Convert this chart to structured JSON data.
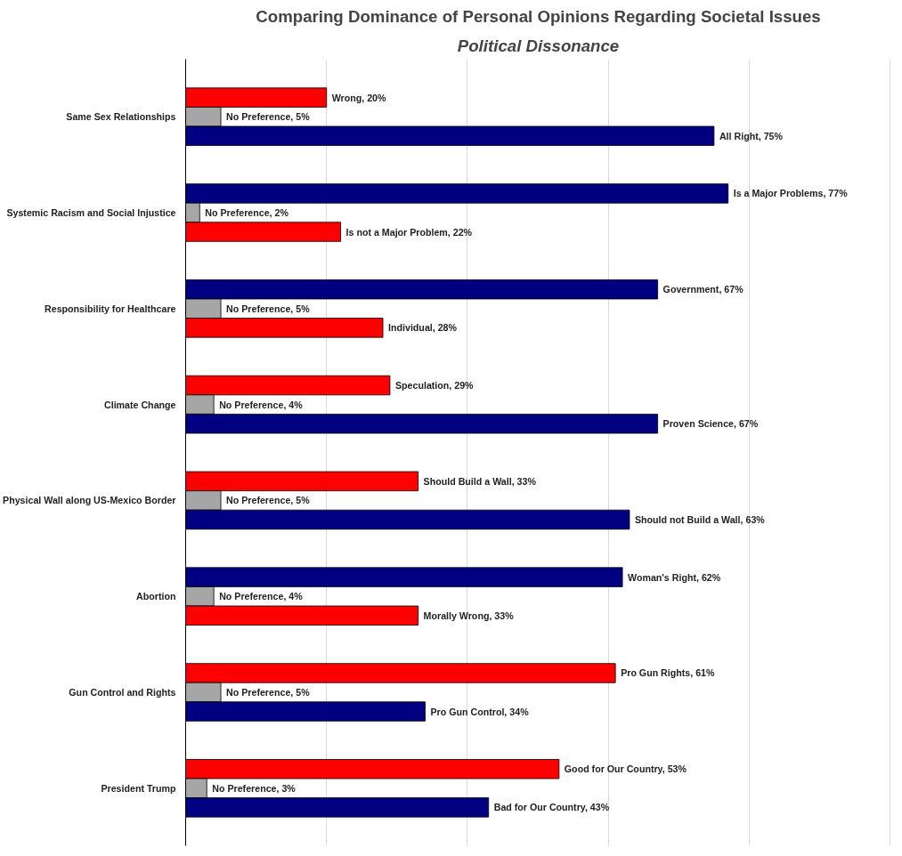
{
  "chart_data": {
    "type": "bar",
    "orientation": "horizontal",
    "title": "Comparing Dominance of Personal Opinions Regarding Societal Issues",
    "subtitle": "Political Dissonance",
    "categories": [
      "Same Sex Relationships",
      "Systemic Racism and Social Injustice",
      "Responsibility for Healthcare",
      "Climate Change",
      "Physical Wall along US-Mexico Border",
      "Abortion",
      "Gun Control and Rights",
      "President Trump"
    ],
    "series": [
      {
        "colors": [
          "#ff0000",
          "#000080",
          "#000080",
          "#ff0000",
          "#ff0000",
          "#000080",
          "#ff0000",
          "#ff0000"
        ],
        "values": [
          20,
          77,
          67,
          29,
          33,
          62,
          61,
          53
        ],
        "value_labels": [
          "Wrong, 20%",
          "Is a Major Problems, 77%",
          "Government, 67%",
          "Speculation, 29%",
          "Should Build a Wall, 33%",
          "Woman's Right, 62%",
          "Pro Gun Rights, 61%",
          "Good for Our Country, 53%"
        ]
      },
      {
        "colors": [
          "#a6a6a6",
          "#a6a6a6",
          "#a6a6a6",
          "#a6a6a6",
          "#a6a6a6",
          "#a6a6a6",
          "#a6a6a6",
          "#a6a6a6"
        ],
        "values": [
          5,
          2,
          5,
          4,
          5,
          4,
          5,
          3
        ],
        "value_labels": [
          "No Preference, 5%",
          "No Preference, 2%",
          "No Preference, 5%",
          "No Preference, 4%",
          "No Preference, 5%",
          "No Preference, 4%",
          "No Preference, 5%",
          "No Preference, 3%"
        ]
      },
      {
        "colors": [
          "#000080",
          "#ff0000",
          "#ff0000",
          "#000080",
          "#000080",
          "#ff0000",
          "#000080",
          "#000080"
        ],
        "values": [
          75,
          22,
          28,
          67,
          63,
          33,
          34,
          43
        ],
        "value_labels": [
          "All Right, 75%",
          "Is not a Major Problem, 22%",
          "Individual, 28%",
          "Proven Science, 67%",
          "Should not Build a Wall, 63%",
          "Morally Wrong, 33%",
          "Pro Gun Control, 34%",
          "Bad for Our Country, 43%"
        ]
      }
    ],
    "grid": "x",
    "tick_labels": "y"
  }
}
